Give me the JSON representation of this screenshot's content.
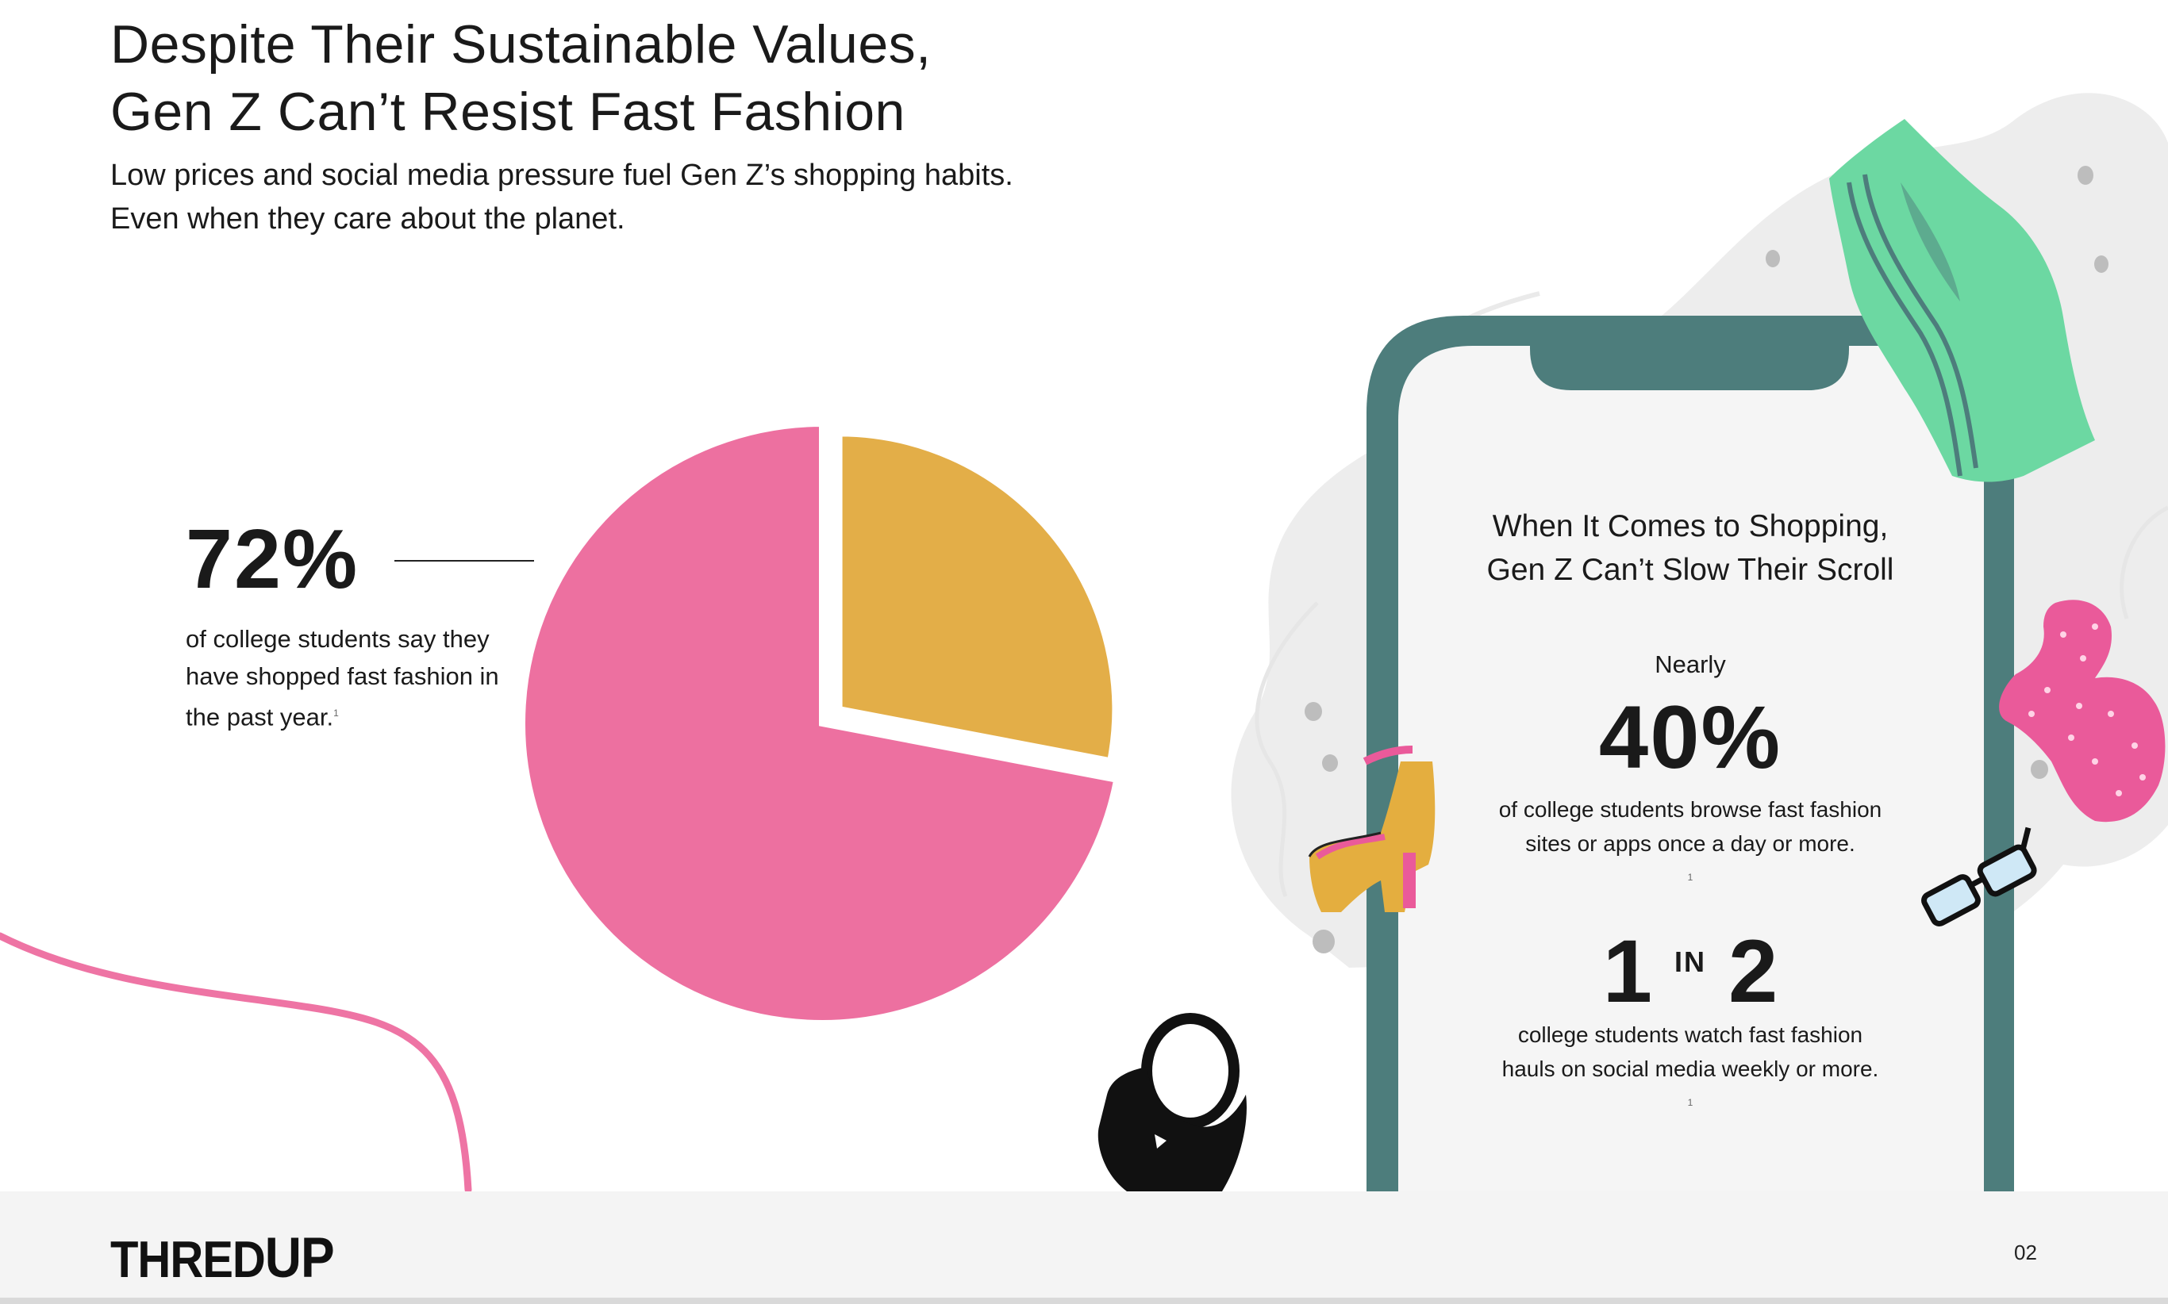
{
  "header": {
    "title_lines": [
      "Despite Their Sustainable Values,",
      "Gen Z Can’t Resist Fast Fashion"
    ],
    "subtitle_lines": [
      "Low prices and social media pressure fuel Gen Z’s shopping habits.",
      "Even when they care about the planet."
    ]
  },
  "stat_left": {
    "value": "72%",
    "description": "of college students say they have shopped fast fashion in the past year.",
    "footnote": "1"
  },
  "chart_data": {
    "type": "pie",
    "values": [
      72,
      28
    ],
    "colors": [
      "#ED70A0",
      "#E3AE48"
    ],
    "exploded_index": 1
  },
  "phone": {
    "heading_lines": [
      "When It Comes to Shopping,",
      "Gen Z Can’t Slow Their Scroll"
    ],
    "stat1": {
      "prefix": "Nearly",
      "value": "40%",
      "desc_lines": [
        "of college students browse fast fashion",
        "sites or apps once a day or more."
      ],
      "footnote": "1"
    },
    "stat2": {
      "left": "1",
      "mid": "IN",
      "right": "2",
      "desc_lines": [
        "college students watch fast fashion",
        "hauls on social media weekly or more."
      ],
      "footnote": "1"
    }
  },
  "icons": [
    "shirt-icon",
    "shoe-icon",
    "handbag-icon",
    "glasses-icon",
    "pink-top-icon"
  ],
  "footer": {
    "logo_main": "THRED",
    "logo_accent": "UP",
    "page_number": "02"
  }
}
